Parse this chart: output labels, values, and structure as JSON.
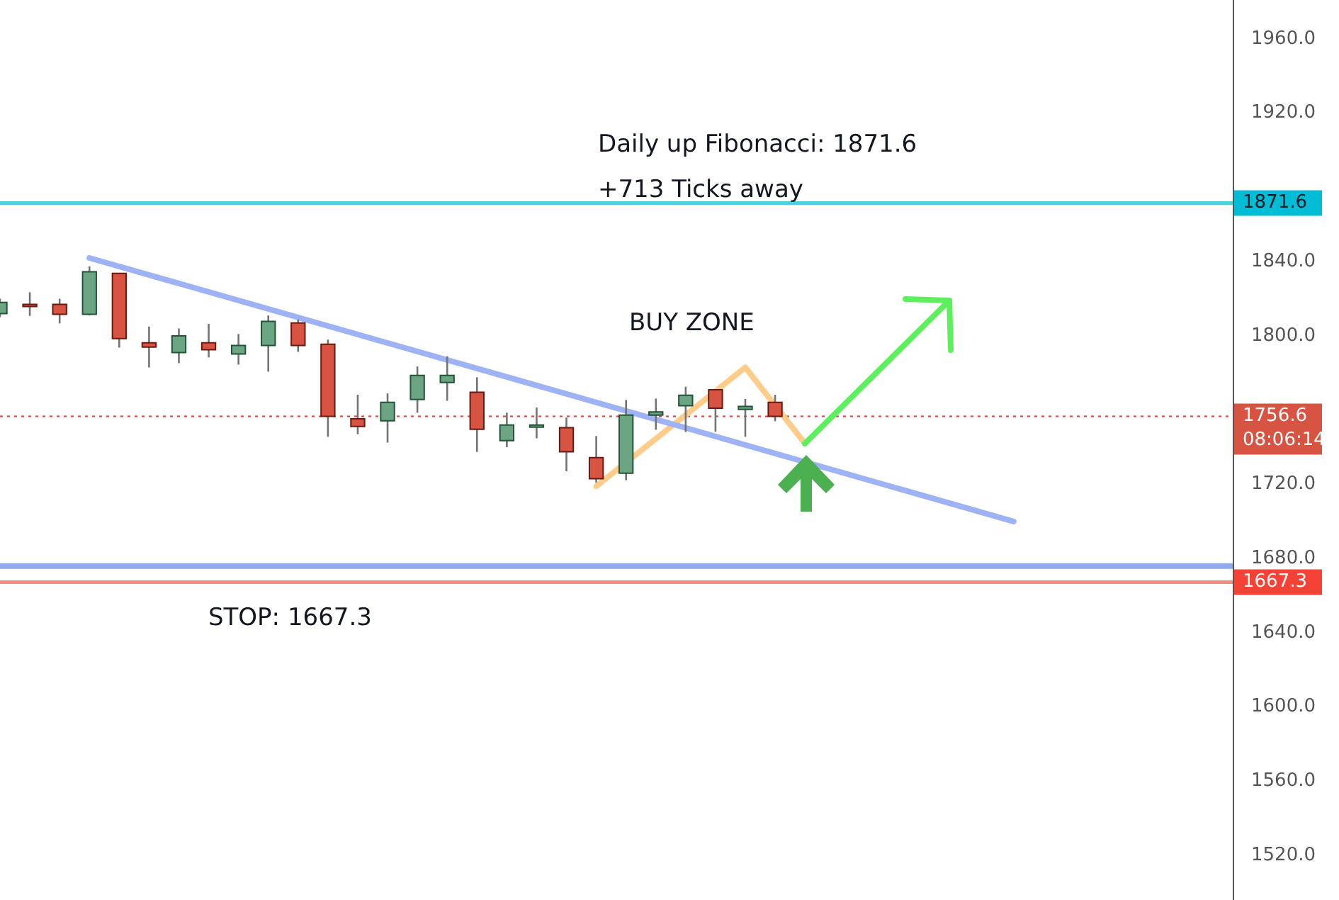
{
  "chart_data": {
    "type": "candlestick",
    "categories": [
      null,
      null,
      null,
      null,
      null,
      null,
      null,
      null,
      null,
      null,
      null,
      null,
      null,
      null,
      null,
      null,
      null,
      null,
      null,
      null,
      null,
      null,
      null,
      null,
      null,
      null,
      null,
      null,
      null,
      null,
      null,
      null,
      null,
      null,
      null,
      null,
      null,
      null,
      null,
      null,
      null,
      null
    ],
    "ohlc": [
      [
        1812,
        1820,
        1810,
        1818
      ],
      [
        1817,
        1823.5,
        1810.8,
        1816
      ],
      [
        1817,
        1820,
        1806.7,
        1811.6
      ],
      [
        1811.6,
        1837.5,
        1811,
        1834.5
      ],
      [
        1833.7,
        1834,
        1793.7,
        1798.6
      ],
      [
        1796.3,
        1805,
        1783,
        1794
      ],
      [
        1791,
        1804,
        1785.3,
        1800
      ],
      [
        1796.3,
        1806.5,
        1788.4,
        1792.5
      ],
      [
        1790.2,
        1801,
        1784.5,
        1794.8
      ],
      [
        1794.8,
        1811,
        1780.7,
        1807.8
      ],
      [
        1807,
        1808.7,
        1791.4,
        1794.8
      ],
      [
        1795.5,
        1798,
        1745.6,
        1756.6
      ],
      [
        1755.3,
        1768.3,
        1747,
        1751.2
      ],
      [
        1754.3,
        1769,
        1742.5,
        1764.2
      ],
      [
        1765.7,
        1783.5,
        1758.6,
        1778.7
      ],
      [
        1774.9,
        1789,
        1765,
        1778.7
      ],
      [
        1769.6,
        1777.7,
        1737.5,
        1749.7
      ],
      [
        1743.6,
        1758.6,
        1740,
        1752
      ],
      [
        1752,
        1761.4,
        1744.8,
        1752
      ],
      [
        1750.5,
        1756,
        1727,
        1737.5
      ],
      [
        1734.4,
        1746,
        1721,
        1723
      ],
      [
        1726,
        1765.5,
        1722.2,
        1757.3
      ],
      [
        1757.3,
        1766.2,
        1749.4,
        1759
      ],
      [
        1762.4,
        1772.6,
        1748.2,
        1768
      ],
      [
        1771,
        1771,
        1748.4,
        1761
      ],
      [
        1760.4,
        1766,
        1745.6,
        1762
      ],
      [
        1764.2,
        1768.3,
        1754,
        1756.6
      ],
      null,
      null,
      null,
      null,
      null,
      null,
      null,
      null,
      null,
      null,
      null,
      null,
      null,
      null,
      null
    ],
    "series": [
      {
        "type": "line",
        "color": "#9db3f5",
        "values": [
          null,
          null,
          null,
          1842,
          null,
          null,
          null,
          null,
          null,
          null,
          null,
          null,
          null,
          null,
          null,
          null,
          null,
          null,
          null,
          null,
          null,
          null,
          null,
          null,
          null,
          null,
          null,
          null,
          null,
          null,
          null,
          null,
          null,
          null,
          1700,
          null,
          null,
          null,
          null,
          null,
          null,
          null
        ]
      },
      {
        "type": "line",
        "color": "#ffcc8a",
        "values": [
          null,
          null,
          null,
          null,
          null,
          null,
          null,
          null,
          null,
          null,
          null,
          null,
          null,
          null,
          null,
          null,
          null,
          null,
          null,
          null,
          1719,
          null,
          null,
          null,
          null,
          1783,
          null,
          1742,
          null,
          null,
          null,
          null,
          null,
          null,
          null,
          null,
          null,
          null,
          null,
          null,
          null,
          null
        ]
      }
    ],
    "ylim": [
      1496,
      1981
    ],
    "yticks": [
      {
        "value": 1520,
        "label": "1520.0"
      },
      {
        "value": 1560,
        "label": "1560.0"
      },
      {
        "value": 1600,
        "label": "1600.0"
      },
      {
        "value": 1640,
        "label": "1640.0"
      },
      {
        "value": 1680,
        "label": "1680.0"
      },
      {
        "value": 1720,
        "label": "1720.0"
      },
      {
        "value": 1800,
        "label": "1800.0"
      },
      {
        "value": 1840,
        "label": "1840.0"
      },
      {
        "value": 1920,
        "label": "1920.0"
      },
      {
        "value": 1960,
        "label": "1960.0"
      }
    ],
    "ref_lines": [
      {
        "axis": "y",
        "value": 1871.6,
        "label": "1871.6",
        "color": "#4dd0e1",
        "line_style": "solid"
      },
      {
        "axis": "y",
        "value": 1756.6,
        "label": "1756.6",
        "color": "#e53935",
        "line_style": "dotted"
      },
      {
        "axis": "y",
        "value": 1676,
        "color": "#8fa8f0",
        "line_style": "solid"
      },
      {
        "axis": "y",
        "value": 1667.3,
        "label": "1667.3",
        "color": "#f48a80",
        "line_style": "solid"
      }
    ],
    "annotations": [
      "Daily up Fibonacci: 1871.6",
      "+713 Ticks away",
      "BUY ZONE",
      "STOP: 1667.3",
      "08:06:14"
    ],
    "tick_labels": "y",
    "grid": false,
    "legend": false,
    "marker": "none"
  }
}
